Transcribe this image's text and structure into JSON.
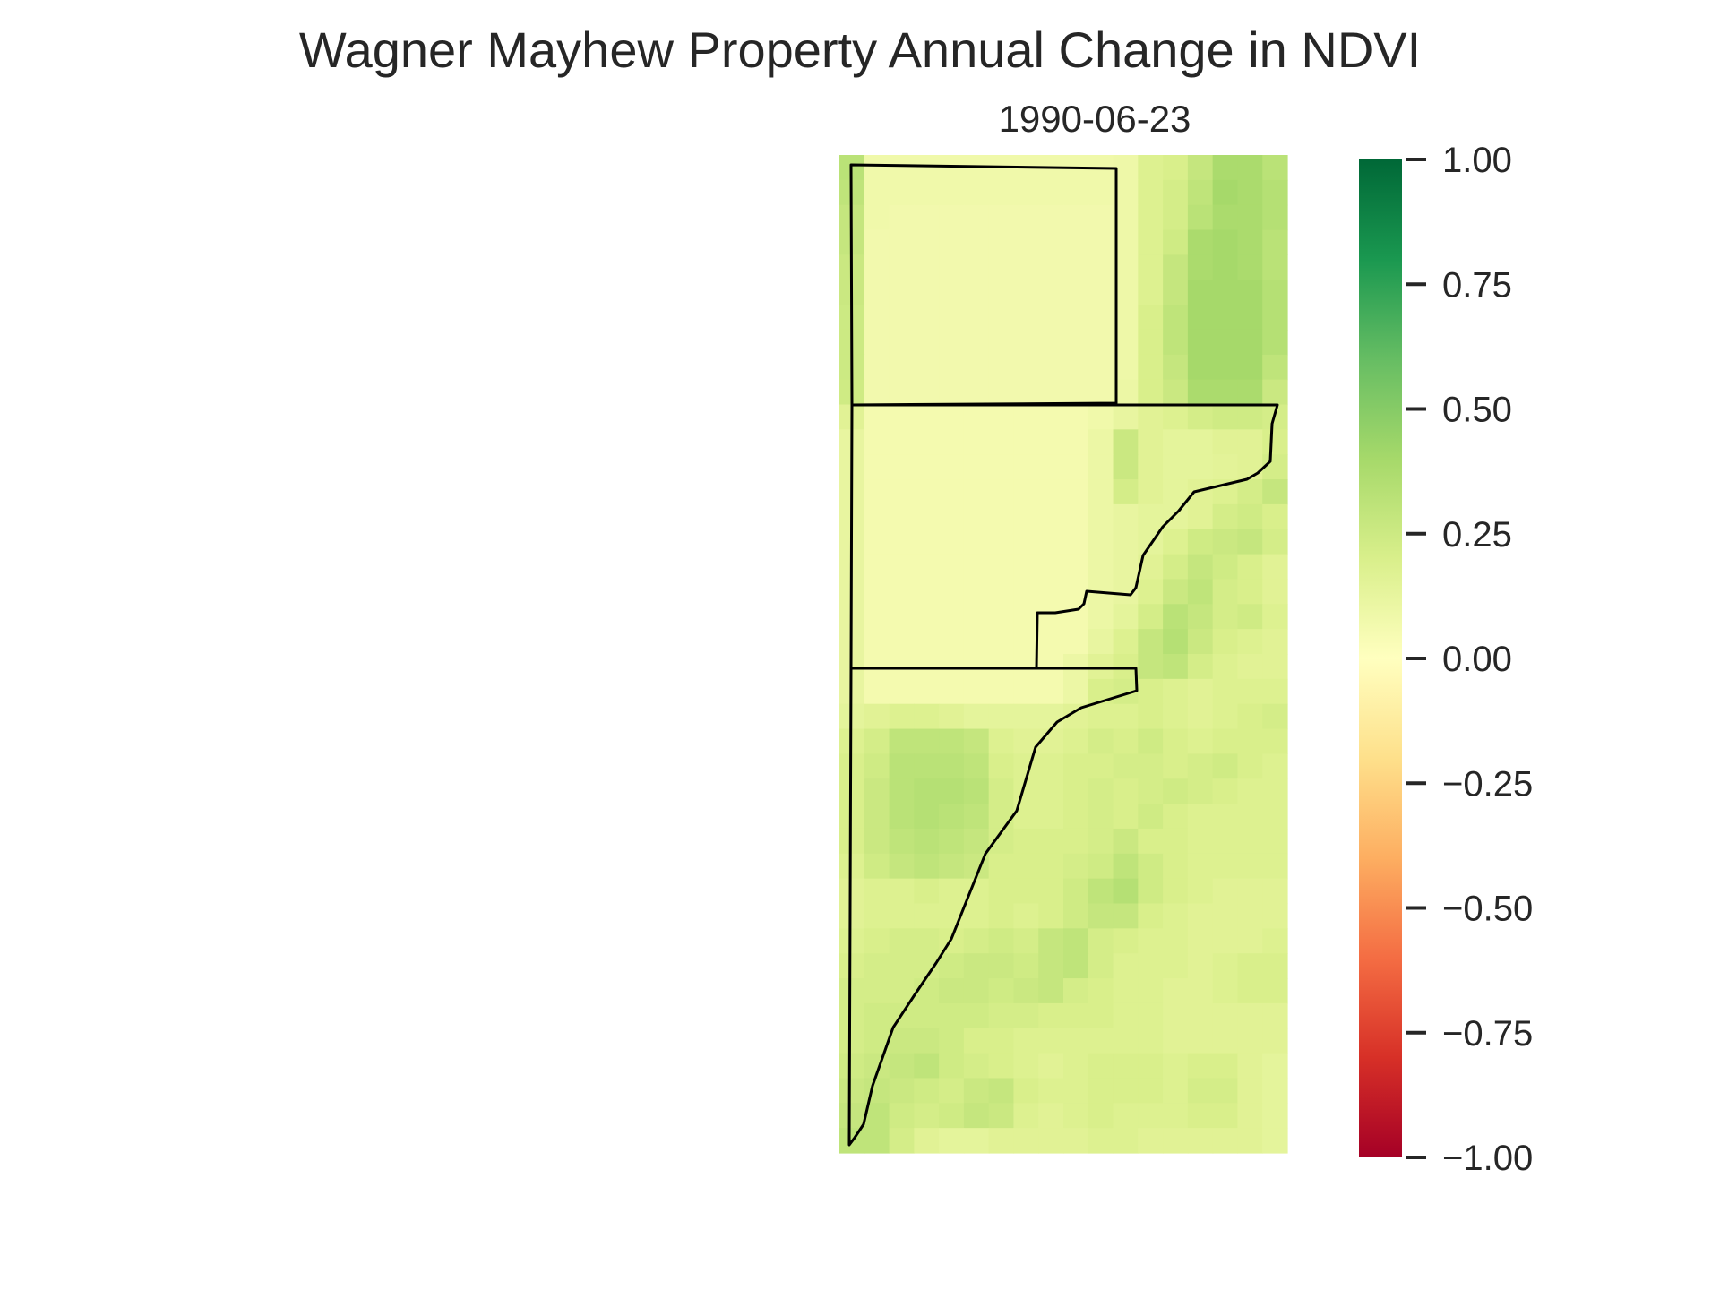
{
  "chart_data": {
    "type": "heatmap",
    "title": "Wagner Mayhew Property Annual Change in NDVI",
    "subtitle": "1990-06-23",
    "colormap": "RdYlGn",
    "colorbar": {
      "vmin": -1.0,
      "vmax": 1.0,
      "ticks": [
        1.0,
        0.75,
        0.5,
        0.25,
        0.0,
        -0.25,
        -0.5,
        -0.75,
        -1.0
      ],
      "tick_labels": [
        "1.00",
        "0.75",
        "0.50",
        "0.25",
        "0.00",
        "−0.25",
        "−0.50",
        "−0.75",
        "−1.00"
      ]
    },
    "grid": {
      "rows": 40,
      "cols": 18,
      "approximate_ndvi_change": [
        [
          0.32,
          0.08,
          0.08,
          0.08,
          0.08,
          0.08,
          0.08,
          0.08,
          0.08,
          0.08,
          0.08,
          0.09,
          0.18,
          0.2,
          0.28,
          0.38,
          0.38,
          0.32
        ],
        [
          0.3,
          0.08,
          0.08,
          0.08,
          0.08,
          0.08,
          0.08,
          0.08,
          0.08,
          0.08,
          0.08,
          0.09,
          0.18,
          0.22,
          0.3,
          0.4,
          0.38,
          0.34
        ],
        [
          0.28,
          0.08,
          0.07,
          0.07,
          0.07,
          0.07,
          0.07,
          0.07,
          0.07,
          0.07,
          0.07,
          0.09,
          0.18,
          0.22,
          0.32,
          0.38,
          0.38,
          0.34
        ],
        [
          0.28,
          0.07,
          0.07,
          0.07,
          0.07,
          0.07,
          0.07,
          0.07,
          0.07,
          0.07,
          0.07,
          0.09,
          0.18,
          0.24,
          0.38,
          0.4,
          0.38,
          0.32
        ],
        [
          0.26,
          0.07,
          0.07,
          0.07,
          0.07,
          0.07,
          0.07,
          0.07,
          0.07,
          0.07,
          0.07,
          0.09,
          0.18,
          0.28,
          0.38,
          0.4,
          0.38,
          0.32
        ],
        [
          0.26,
          0.07,
          0.07,
          0.07,
          0.07,
          0.07,
          0.07,
          0.07,
          0.07,
          0.07,
          0.07,
          0.09,
          0.18,
          0.28,
          0.4,
          0.4,
          0.4,
          0.34
        ],
        [
          0.25,
          0.07,
          0.07,
          0.07,
          0.07,
          0.07,
          0.07,
          0.07,
          0.07,
          0.07,
          0.07,
          0.09,
          0.2,
          0.3,
          0.4,
          0.4,
          0.4,
          0.34
        ],
        [
          0.25,
          0.07,
          0.07,
          0.07,
          0.07,
          0.07,
          0.07,
          0.07,
          0.07,
          0.07,
          0.07,
          0.09,
          0.2,
          0.3,
          0.4,
          0.4,
          0.4,
          0.34
        ],
        [
          0.25,
          0.07,
          0.07,
          0.07,
          0.07,
          0.07,
          0.07,
          0.07,
          0.07,
          0.07,
          0.07,
          0.09,
          0.2,
          0.28,
          0.4,
          0.4,
          0.4,
          0.3
        ],
        [
          0.24,
          0.07,
          0.07,
          0.07,
          0.07,
          0.07,
          0.07,
          0.07,
          0.07,
          0.07,
          0.07,
          0.1,
          0.2,
          0.26,
          0.38,
          0.38,
          0.38,
          0.26
        ],
        [
          0.16,
          0.06,
          0.06,
          0.06,
          0.06,
          0.06,
          0.06,
          0.06,
          0.06,
          0.06,
          0.08,
          0.12,
          0.16,
          0.18,
          0.22,
          0.24,
          0.24,
          0.22
        ],
        [
          0.12,
          0.06,
          0.06,
          0.06,
          0.06,
          0.06,
          0.06,
          0.06,
          0.06,
          0.06,
          0.1,
          0.26,
          0.16,
          0.14,
          0.14,
          0.16,
          0.16,
          0.2
        ],
        [
          0.12,
          0.06,
          0.06,
          0.06,
          0.06,
          0.06,
          0.06,
          0.06,
          0.06,
          0.06,
          0.1,
          0.26,
          0.16,
          0.14,
          0.14,
          0.15,
          0.16,
          0.22
        ],
        [
          0.12,
          0.06,
          0.06,
          0.06,
          0.06,
          0.06,
          0.06,
          0.06,
          0.06,
          0.06,
          0.1,
          0.22,
          0.16,
          0.14,
          0.16,
          0.18,
          0.22,
          0.28
        ],
        [
          0.12,
          0.06,
          0.06,
          0.06,
          0.06,
          0.06,
          0.06,
          0.06,
          0.06,
          0.06,
          0.1,
          0.12,
          0.14,
          0.14,
          0.16,
          0.22,
          0.24,
          0.2
        ],
        [
          0.12,
          0.06,
          0.06,
          0.06,
          0.06,
          0.06,
          0.06,
          0.06,
          0.06,
          0.06,
          0.1,
          0.12,
          0.14,
          0.18,
          0.24,
          0.26,
          0.28,
          0.22
        ],
        [
          0.12,
          0.06,
          0.06,
          0.06,
          0.06,
          0.06,
          0.06,
          0.06,
          0.06,
          0.06,
          0.1,
          0.12,
          0.16,
          0.22,
          0.28,
          0.24,
          0.2,
          0.16
        ],
        [
          0.12,
          0.06,
          0.06,
          0.06,
          0.06,
          0.06,
          0.06,
          0.06,
          0.06,
          0.06,
          0.1,
          0.12,
          0.18,
          0.26,
          0.3,
          0.22,
          0.2,
          0.16
        ],
        [
          0.12,
          0.06,
          0.06,
          0.06,
          0.06,
          0.06,
          0.06,
          0.06,
          0.06,
          0.06,
          0.1,
          0.14,
          0.22,
          0.32,
          0.28,
          0.22,
          0.24,
          0.18
        ],
        [
          0.12,
          0.06,
          0.06,
          0.06,
          0.06,
          0.06,
          0.06,
          0.06,
          0.06,
          0.06,
          0.12,
          0.18,
          0.28,
          0.34,
          0.26,
          0.2,
          0.18,
          0.16
        ],
        [
          0.12,
          0.06,
          0.06,
          0.06,
          0.06,
          0.06,
          0.06,
          0.06,
          0.06,
          0.1,
          0.16,
          0.2,
          0.28,
          0.3,
          0.22,
          0.18,
          0.16,
          0.16
        ],
        [
          0.12,
          0.06,
          0.06,
          0.06,
          0.06,
          0.06,
          0.06,
          0.06,
          0.06,
          0.1,
          0.2,
          0.22,
          0.2,
          0.18,
          0.16,
          0.18,
          0.18,
          0.18
        ],
        [
          0.14,
          0.16,
          0.18,
          0.18,
          0.16,
          0.14,
          0.14,
          0.14,
          0.14,
          0.16,
          0.18,
          0.18,
          0.2,
          0.18,
          0.16,
          0.18,
          0.2,
          0.22
        ],
        [
          0.18,
          0.22,
          0.3,
          0.3,
          0.3,
          0.28,
          0.18,
          0.16,
          0.16,
          0.18,
          0.22,
          0.2,
          0.24,
          0.2,
          0.18,
          0.2,
          0.2,
          0.2
        ],
        [
          0.2,
          0.24,
          0.32,
          0.32,
          0.32,
          0.3,
          0.2,
          0.18,
          0.18,
          0.2,
          0.2,
          0.22,
          0.22,
          0.2,
          0.22,
          0.24,
          0.2,
          0.18
        ],
        [
          0.2,
          0.26,
          0.32,
          0.34,
          0.34,
          0.32,
          0.22,
          0.18,
          0.18,
          0.2,
          0.22,
          0.2,
          0.22,
          0.24,
          0.22,
          0.2,
          0.18,
          0.18
        ],
        [
          0.2,
          0.26,
          0.32,
          0.34,
          0.32,
          0.3,
          0.22,
          0.18,
          0.18,
          0.2,
          0.22,
          0.2,
          0.24,
          0.2,
          0.18,
          0.18,
          0.18,
          0.18
        ],
        [
          0.2,
          0.26,
          0.3,
          0.32,
          0.3,
          0.28,
          0.22,
          0.2,
          0.2,
          0.2,
          0.22,
          0.26,
          0.2,
          0.2,
          0.18,
          0.18,
          0.18,
          0.18
        ],
        [
          0.18,
          0.24,
          0.28,
          0.3,
          0.28,
          0.26,
          0.2,
          0.2,
          0.2,
          0.22,
          0.24,
          0.3,
          0.24,
          0.2,
          0.18,
          0.18,
          0.18,
          0.18
        ],
        [
          0.16,
          0.18,
          0.18,
          0.2,
          0.18,
          0.18,
          0.2,
          0.2,
          0.2,
          0.24,
          0.3,
          0.34,
          0.24,
          0.2,
          0.18,
          0.16,
          0.16,
          0.16
        ],
        [
          0.16,
          0.18,
          0.18,
          0.18,
          0.18,
          0.18,
          0.2,
          0.18,
          0.2,
          0.24,
          0.28,
          0.28,
          0.2,
          0.18,
          0.16,
          0.16,
          0.16,
          0.16
        ],
        [
          0.18,
          0.2,
          0.22,
          0.22,
          0.2,
          0.22,
          0.24,
          0.22,
          0.28,
          0.3,
          0.22,
          0.2,
          0.18,
          0.18,
          0.16,
          0.16,
          0.16,
          0.18
        ],
        [
          0.2,
          0.22,
          0.22,
          0.22,
          0.24,
          0.26,
          0.26,
          0.24,
          0.28,
          0.3,
          0.22,
          0.18,
          0.18,
          0.18,
          0.16,
          0.18,
          0.2,
          0.2
        ],
        [
          0.22,
          0.22,
          0.22,
          0.24,
          0.26,
          0.26,
          0.24,
          0.26,
          0.28,
          0.22,
          0.2,
          0.18,
          0.18,
          0.16,
          0.16,
          0.18,
          0.2,
          0.2
        ],
        [
          0.22,
          0.24,
          0.24,
          0.24,
          0.24,
          0.24,
          0.22,
          0.22,
          0.2,
          0.2,
          0.2,
          0.18,
          0.18,
          0.16,
          0.16,
          0.16,
          0.16,
          0.16
        ],
        [
          0.22,
          0.24,
          0.26,
          0.26,
          0.24,
          0.2,
          0.2,
          0.18,
          0.18,
          0.18,
          0.18,
          0.18,
          0.18,
          0.16,
          0.16,
          0.16,
          0.16,
          0.16
        ],
        [
          0.24,
          0.26,
          0.28,
          0.3,
          0.24,
          0.22,
          0.2,
          0.18,
          0.16,
          0.18,
          0.2,
          0.2,
          0.2,
          0.18,
          0.2,
          0.2,
          0.16,
          0.14
        ],
        [
          0.26,
          0.28,
          0.26,
          0.24,
          0.22,
          0.26,
          0.28,
          0.2,
          0.18,
          0.18,
          0.2,
          0.2,
          0.2,
          0.18,
          0.22,
          0.22,
          0.16,
          0.14
        ],
        [
          0.28,
          0.3,
          0.24,
          0.22,
          0.24,
          0.28,
          0.26,
          0.18,
          0.16,
          0.18,
          0.2,
          0.18,
          0.18,
          0.18,
          0.2,
          0.2,
          0.16,
          0.14
        ],
        [
          0.3,
          0.3,
          0.22,
          0.16,
          0.14,
          0.14,
          0.16,
          0.16,
          0.16,
          0.16,
          0.18,
          0.18,
          0.16,
          0.16,
          0.16,
          0.16,
          0.16,
          0.14
        ]
      ]
    },
    "axes_visible": false,
    "grid_lines": false,
    "boundary_polygons": 3
  }
}
